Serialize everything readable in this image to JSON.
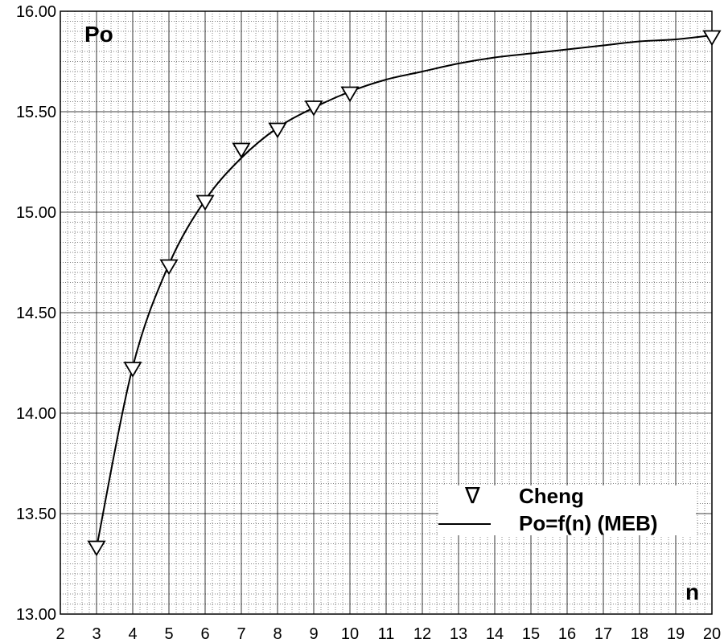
{
  "chart_data": {
    "type": "line",
    "title": "",
    "xlabel": "n",
    "ylabel": "Po",
    "xlim": [
      2,
      20
    ],
    "ylim": [
      13.0,
      16.0
    ],
    "x_ticks": [
      "2",
      "3",
      "4",
      "5",
      "6",
      "7",
      "8",
      "9",
      "10",
      "11",
      "12",
      "13",
      "14",
      "15",
      "16",
      "17",
      "18",
      "19",
      "20"
    ],
    "y_ticks": [
      "13.00",
      "13.50",
      "14.00",
      "14.50",
      "15.00",
      "15.50",
      "16.00"
    ],
    "grid": true,
    "legend_position": "bottom-right",
    "series": [
      {
        "name": "Cheng",
        "style": "markers",
        "marker": "down-triangle",
        "points": [
          {
            "x": 3,
            "y": 13.33
          },
          {
            "x": 4,
            "y": 14.22
          },
          {
            "x": 5,
            "y": 14.73
          },
          {
            "x": 6,
            "y": 15.05
          },
          {
            "x": 7,
            "y": 15.31
          },
          {
            "x": 8,
            "y": 15.41
          },
          {
            "x": 9,
            "y": 15.52
          },
          {
            "x": 10,
            "y": 15.59
          },
          {
            "x": 20,
            "y": 15.87
          }
        ]
      },
      {
        "name": "Po=f(n) (MEB)",
        "style": "line",
        "points": [
          {
            "x": 3,
            "y": 13.33
          },
          {
            "x": 4,
            "y": 14.23
          },
          {
            "x": 5,
            "y": 14.74
          },
          {
            "x": 6,
            "y": 15.06
          },
          {
            "x": 7,
            "y": 15.27
          },
          {
            "x": 8,
            "y": 15.42
          },
          {
            "x": 9,
            "y": 15.52
          },
          {
            "x": 10,
            "y": 15.6
          },
          {
            "x": 11,
            "y": 15.66
          },
          {
            "x": 12,
            "y": 15.7
          },
          {
            "x": 13,
            "y": 15.74
          },
          {
            "x": 14,
            "y": 15.77
          },
          {
            "x": 15,
            "y": 15.79
          },
          {
            "x": 16,
            "y": 15.81
          },
          {
            "x": 17,
            "y": 15.83
          },
          {
            "x": 18,
            "y": 15.85
          },
          {
            "x": 19,
            "y": 15.86
          },
          {
            "x": 20,
            "y": 15.88
          }
        ]
      }
    ]
  }
}
